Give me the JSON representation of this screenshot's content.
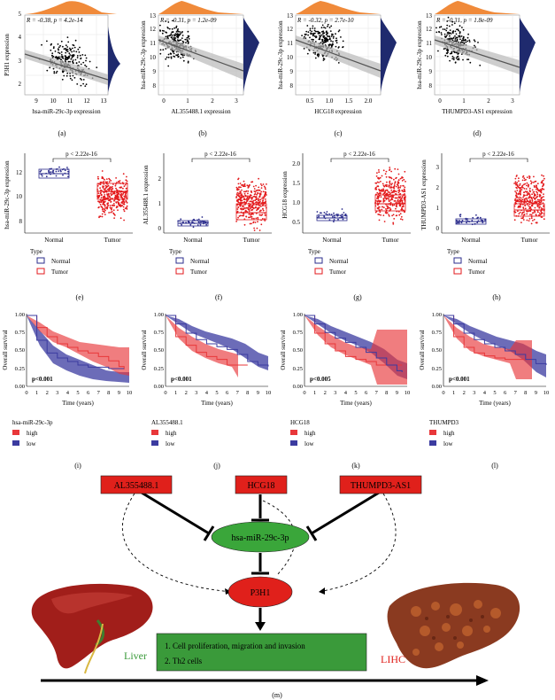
{
  "colors": {
    "scatter_dot": "#000000",
    "density_fill": "#f08a3a",
    "density_side": "#1f2a6e",
    "regression_band": "#b9b9b9",
    "normal_blue": "#2b2c8c",
    "tumor_red": "#e31a1c",
    "low_fill": "#3b3ba0",
    "high_fill": "#e8373a",
    "node_red": "#e0201b",
    "node_green": "#3aa63a",
    "result_box": "#3a9a3a",
    "liver_green": "#3a9a3a",
    "lihc_red": "#e0201b"
  },
  "panels": {
    "a": {
      "label": "(a)",
      "stat": "R = -0.38, p = 4.2e-14",
      "xlabel": "hsa-miR-29c-3p expression",
      "ylabel": "P3H1 expression",
      "xticks": [
        "9",
        "10",
        "11",
        "12",
        "13"
      ],
      "yticks": [
        "2",
        "3",
        "4",
        "5"
      ]
    },
    "b": {
      "label": "(b)",
      "stat": "R = -0.31, p = 1.2e-09",
      "xlabel": "AL355488.1 expression",
      "ylabel": "hsa-miR-29c-3p expression",
      "xticks": [
        "0",
        "1",
        "2",
        "3"
      ],
      "yticks": [
        "8",
        "9",
        "10",
        "11",
        "12",
        "13"
      ]
    },
    "c": {
      "label": "(c)",
      "stat": "R = -0.32, p = 2.7e-10",
      "xlabel": "HCG18 expression",
      "ylabel": "hsa-miR-29c-3p expression",
      "xticks": [
        "0.5",
        "1.0",
        "1.5",
        "2.0"
      ],
      "yticks": [
        "8",
        "9",
        "10",
        "11",
        "12",
        "13"
      ]
    },
    "d": {
      "label": "(d)",
      "stat": "R = -0.31, p = 1.8e-09",
      "xlabel": "THUMPD3-AS1 expression",
      "ylabel": "hsa-miR-29c-3p expression",
      "xticks": [
        "0",
        "1",
        "2",
        "3"
      ],
      "yticks": [
        "8",
        "9",
        "10",
        "11",
        "12",
        "13"
      ]
    },
    "e": {
      "label": "(e)",
      "pval": "p < 2.22e-16",
      "ylabel": "hsa-miR-29c-3p expression",
      "groups": [
        "Normal",
        "Tumor"
      ],
      "yticks": [
        "8",
        "10",
        "12"
      ],
      "legend_title": "Type",
      "legend": [
        "Normal",
        "Tumor"
      ]
    },
    "f": {
      "label": "(f)",
      "pval": "p < 2.22e-16",
      "ylabel": "AL355488.1 expression",
      "groups": [
        "Normal",
        "Tumor"
      ],
      "yticks": [
        "0",
        "1",
        "2"
      ],
      "legend_title": "Type",
      "legend": [
        "Normal",
        "Tumor"
      ]
    },
    "g": {
      "label": "(g)",
      "pval": "p < 2.22e-16",
      "ylabel": "HCG18 expression",
      "groups": [
        "Normal",
        "Tumor"
      ],
      "yticks": [
        "0.5",
        "1.0",
        "1.5",
        "2.0"
      ],
      "legend_title": "Type",
      "legend": [
        "Normal",
        "Tumor"
      ]
    },
    "h": {
      "label": "(h)",
      "pval": "p < 2.22e-16",
      "ylabel": "THUMPD3-AS1 expression",
      "groups": [
        "Normal",
        "Tumor"
      ],
      "yticks": [
        "0",
        "1",
        "2",
        "3"
      ],
      "legend_title": "Type",
      "legend": [
        "Normal",
        "Tumor"
      ]
    },
    "i": {
      "label": "(i)",
      "pval": "p<0.001",
      "gene": "hsa-miR-29c-3p",
      "ylabel": "Overall survival",
      "xlabel": "Time (years)",
      "legend": [
        "high",
        "low"
      ],
      "xticks": [
        "0",
        "1",
        "2",
        "3",
        "4",
        "5",
        "6",
        "7",
        "8",
        "9",
        "10"
      ],
      "yticks": [
        "0.00",
        "0.25",
        "0.50",
        "0.75",
        "1.00"
      ]
    },
    "j": {
      "label": "(j)",
      "pval": "p<0.001",
      "gene": "AL355488.1",
      "ylabel": "Overall survival",
      "xlabel": "Time (years)",
      "legend": [
        "high",
        "low"
      ],
      "xticks": [
        "0",
        "1",
        "2",
        "3",
        "4",
        "5",
        "6",
        "7",
        "8",
        "9",
        "10"
      ],
      "yticks": [
        "0.00",
        "0.25",
        "0.50",
        "0.75",
        "1.00"
      ]
    },
    "k": {
      "label": "(k)",
      "pval": "p<0.005",
      "gene": "HCG18",
      "ylabel": "Overall survival",
      "xlabel": "Time (years)",
      "legend": [
        "high",
        "low"
      ],
      "xticks": [
        "0",
        "1",
        "2",
        "3",
        "4",
        "5",
        "6",
        "7",
        "8",
        "9",
        "10"
      ],
      "yticks": [
        "0.00",
        "0.25",
        "0.50",
        "0.75",
        "1.00"
      ]
    },
    "l": {
      "label": "(l)",
      "pval": "p<0.001",
      "gene": "THUMPD3",
      "ylabel": "Overall survival",
      "xlabel": "Time (years)",
      "legend": [
        "high",
        "low"
      ],
      "xticks": [
        "0",
        "1",
        "2",
        "3",
        "4",
        "5",
        "6",
        "7",
        "8",
        "9",
        "10"
      ],
      "yticks": [
        "0.00",
        "0.25",
        "0.50",
        "0.75",
        "1.00"
      ]
    }
  },
  "diagram": {
    "label": "(m)",
    "nodes": {
      "al": "AL355488.1",
      "hcg": "HCG18",
      "thu": "THUMPD3-AS1",
      "mir": "hsa-miR-29c-3p",
      "p3h1": "P3H1"
    },
    "results": [
      "1. Cell proliferation, migration and invasion",
      "2. Th2 cells"
    ],
    "liver_label": "Liver",
    "lihc_label": "LIHC"
  },
  "chart_data": [
    {
      "type": "scatter",
      "panel": "a",
      "title": "",
      "xlabel": "hsa-miR-29c-3p expression",
      "ylabel": "P3H1 expression",
      "xlim": [
        8.5,
        13.2
      ],
      "ylim": [
        1.6,
        5.1
      ],
      "annotation": "R = -0.38, p = 4.2e-14",
      "trend": {
        "x": [
          8.5,
          13.2
        ],
        "y": [
          3.1,
          2.35
        ]
      }
    },
    {
      "type": "scatter",
      "panel": "b",
      "title": "",
      "xlabel": "AL355488.1 expression",
      "ylabel": "hsa-miR-29c-3p expression",
      "xlim": [
        -0.1,
        3.3
      ],
      "ylim": [
        7.6,
        13.2
      ],
      "annotation": "R = -0.31, p = 1.2e-09",
      "trend": {
        "x": [
          0,
          3.2
        ],
        "y": [
          11.0,
          9.2
        ]
      }
    },
    {
      "type": "scatter",
      "panel": "c",
      "title": "",
      "xlabel": "HCG18 expression",
      "ylabel": "hsa-miR-29c-3p expression",
      "xlim": [
        0.1,
        2.4
      ],
      "ylim": [
        7.6,
        13.2
      ],
      "annotation": "R = -0.32, p = 2.7e-10",
      "trend": {
        "x": [
          0.15,
          2.35
        ],
        "y": [
          11.2,
          9.3
        ]
      }
    },
    {
      "type": "scatter",
      "panel": "d",
      "title": "",
      "xlabel": "THUMPD3-AS1 expression",
      "ylabel": "hsa-miR-29c-3p expression",
      "xlim": [
        -0.1,
        3.3
      ],
      "ylim": [
        7.6,
        13.2
      ],
      "annotation": "R = -0.31, p = 1.8e-09",
      "trend": {
        "x": [
          0,
          3.2
        ],
        "y": [
          11.0,
          9.4
        ]
      }
    },
    {
      "type": "box",
      "panel": "e",
      "categories": [
        "Normal",
        "Tumor"
      ],
      "ylim": [
        7.3,
        13.6
      ],
      "boxes": [
        {
          "name": "Normal",
          "q1": 11.8,
          "median": 12.1,
          "q3": 12.3,
          "min": 11.1,
          "max": 12.9
        },
        {
          "name": "Tumor",
          "q1": 10.1,
          "median": 10.7,
          "q3": 11.2,
          "min": 8.3,
          "max": 12.7
        }
      ],
      "annotation": "p < 2.22e-16"
    },
    {
      "type": "box",
      "panel": "f",
      "categories": [
        "Normal",
        "Tumor"
      ],
      "ylim": [
        -0.2,
        3.0
      ],
      "boxes": [
        {
          "name": "Normal",
          "q1": 0.08,
          "median": 0.15,
          "q3": 0.25,
          "min": 0.0,
          "max": 0.45
        },
        {
          "name": "Tumor",
          "q1": 0.5,
          "median": 0.75,
          "q3": 1.1,
          "min": 0.1,
          "max": 2.0
        }
      ],
      "annotation": "p < 2.22e-16"
    },
    {
      "type": "box",
      "panel": "g",
      "categories": [
        "Normal",
        "Tumor"
      ],
      "ylim": [
        0.05,
        2.4
      ],
      "boxes": [
        {
          "name": "Normal",
          "q1": 0.35,
          "median": 0.42,
          "q3": 0.48,
          "min": 0.25,
          "max": 0.65
        },
        {
          "name": "Tumor",
          "q1": 0.6,
          "median": 0.82,
          "q3": 1.05,
          "min": 0.2,
          "max": 1.7
        }
      ],
      "annotation": "p < 2.22e-16"
    },
    {
      "type": "box",
      "panel": "h",
      "categories": [
        "Normal",
        "Tumor"
      ],
      "ylim": [
        -0.2,
        3.6
      ],
      "boxes": [
        {
          "name": "Normal",
          "q1": 0.28,
          "median": 0.38,
          "q3": 0.48,
          "min": 0.1,
          "max": 0.8
        },
        {
          "name": "Tumor",
          "q1": 0.85,
          "median": 1.1,
          "q3": 1.4,
          "min": 0.3,
          "max": 2.2
        }
      ],
      "annotation": "p < 2.22e-16"
    },
    {
      "type": "line",
      "panel": "i",
      "xlabel": "Time (years)",
      "ylabel": "Overall survival",
      "xlim": [
        0,
        10
      ],
      "ylim": [
        0,
        1
      ],
      "series": [
        {
          "name": "high",
          "x": [
            0,
            1,
            2,
            3,
            4,
            5,
            6,
            7,
            8,
            9,
            9.5
          ],
          "y": [
            1,
            0.83,
            0.7,
            0.6,
            0.55,
            0.5,
            0.47,
            0.42,
            0.36,
            0.28,
            0.24
          ]
        },
        {
          "name": "low",
          "x": [
            0,
            1,
            2,
            3,
            4,
            5,
            6,
            7,
            8,
            9,
            9.5
          ],
          "y": [
            1,
            0.65,
            0.47,
            0.4,
            0.35,
            0.3,
            0.27,
            0.27,
            0.25,
            0.25,
            0.25
          ]
        }
      ],
      "annotation": "p<0.001"
    },
    {
      "type": "line",
      "panel": "j",
      "xlabel": "Time (years)",
      "ylabel": "Overall survival",
      "xlim": [
        0,
        10
      ],
      "ylim": [
        0,
        1
      ],
      "series": [
        {
          "name": "high",
          "x": [
            0,
            1,
            2,
            3,
            4,
            5,
            6,
            7,
            8
          ],
          "y": [
            1,
            0.7,
            0.58,
            0.48,
            0.42,
            0.38,
            0.3,
            0.3,
            0.3
          ]
        },
        {
          "name": "low",
          "x": [
            0,
            1,
            2,
            3,
            4,
            5,
            6,
            7,
            8,
            9,
            10
          ],
          "y": [
            1,
            0.88,
            0.75,
            0.66,
            0.6,
            0.56,
            0.52,
            0.45,
            0.35,
            0.3,
            0.28
          ]
        }
      ],
      "annotation": "p<0.001"
    },
    {
      "type": "line",
      "panel": "k",
      "xlabel": "Time (years)",
      "ylabel": "Overall survival",
      "xlim": [
        0,
        10
      ],
      "ylim": [
        0,
        1
      ],
      "series": [
        {
          "name": "high",
          "x": [
            0,
            1,
            2,
            3,
            4,
            5,
            6,
            7,
            8,
            9,
            9.5
          ],
          "y": [
            1,
            0.75,
            0.6,
            0.5,
            0.42,
            0.38,
            0.35,
            0.3,
            0.3,
            0.3,
            0.3
          ]
        },
        {
          "name": "low",
          "x": [
            0,
            1,
            2,
            3,
            4,
            5,
            6,
            7,
            8,
            9,
            9.5
          ],
          "y": [
            1,
            0.88,
            0.76,
            0.68,
            0.62,
            0.55,
            0.48,
            0.4,
            0.3,
            0.22,
            0.2
          ]
        }
      ],
      "annotation": "p<0.005"
    },
    {
      "type": "line",
      "panel": "l",
      "xlabel": "Time (years)",
      "ylabel": "Overall survival",
      "xlim": [
        0,
        10
      ],
      "ylim": [
        0,
        1
      ],
      "series": [
        {
          "name": "high",
          "x": [
            0,
            1,
            2,
            3,
            4,
            5,
            6,
            7,
            8
          ],
          "y": [
            1,
            0.7,
            0.55,
            0.47,
            0.43,
            0.4,
            0.38,
            0.38,
            0.38
          ]
        },
        {
          "name": "low",
          "x": [
            0,
            1,
            2,
            3,
            4,
            5,
            6,
            7,
            8,
            9,
            10
          ],
          "y": [
            1,
            0.88,
            0.75,
            0.66,
            0.6,
            0.55,
            0.5,
            0.45,
            0.38,
            0.32,
            0.3
          ]
        }
      ],
      "annotation": "p<0.001"
    }
  ]
}
